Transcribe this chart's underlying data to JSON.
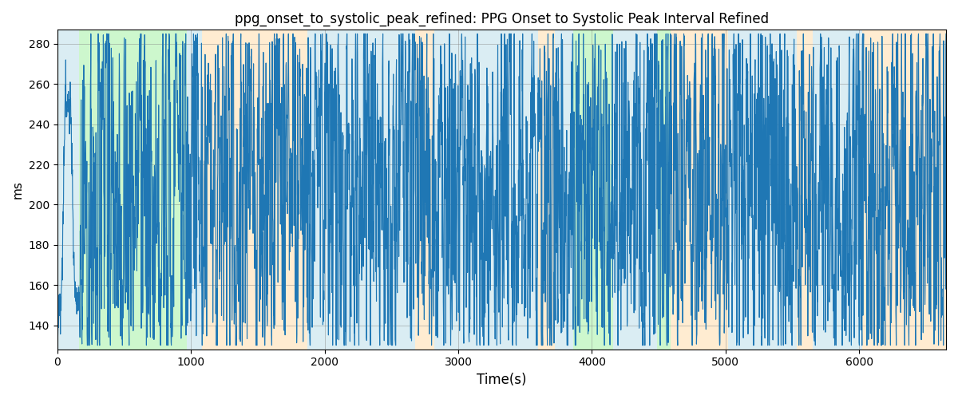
{
  "title": "ppg_onset_to_systolic_peak_refined: PPG Onset to Systolic Peak Interval Refined",
  "xlabel": "Time(s)",
  "ylabel": "ms",
  "xlim": [
    0,
    6650
  ],
  "ylim": [
    128,
    287
  ],
  "yticks": [
    140,
    160,
    180,
    200,
    220,
    240,
    260,
    280
  ],
  "xticks": [
    0,
    1000,
    2000,
    3000,
    4000,
    5000,
    6000
  ],
  "seed": 42,
  "n_points": 4000,
  "background_regions": [
    {
      "xmin": 0,
      "xmax": 165,
      "color": "#add8e6",
      "alpha": 0.45
    },
    {
      "xmin": 165,
      "xmax": 970,
      "color": "#90ee90",
      "alpha": 0.45
    },
    {
      "xmin": 970,
      "xmax": 1080,
      "color": "#add8e6",
      "alpha": 0.45
    },
    {
      "xmin": 1080,
      "xmax": 1870,
      "color": "#ffd59a",
      "alpha": 0.45
    },
    {
      "xmin": 1870,
      "xmax": 2680,
      "color": "#add8e6",
      "alpha": 0.45
    },
    {
      "xmin": 2680,
      "xmax": 2820,
      "color": "#ffd59a",
      "alpha": 0.45
    },
    {
      "xmin": 2820,
      "xmax": 3600,
      "color": "#add8e6",
      "alpha": 0.45
    },
    {
      "xmin": 3600,
      "xmax": 3720,
      "color": "#ffd59a",
      "alpha": 0.45
    },
    {
      "xmin": 3720,
      "xmax": 3860,
      "color": "#add8e6",
      "alpha": 0.45
    },
    {
      "xmin": 3860,
      "xmax": 4160,
      "color": "#90ee90",
      "alpha": 0.45
    },
    {
      "xmin": 4160,
      "xmax": 4490,
      "color": "#add8e6",
      "alpha": 0.45
    },
    {
      "xmin": 4490,
      "xmax": 4590,
      "color": "#90ee90",
      "alpha": 0.45
    },
    {
      "xmin": 4590,
      "xmax": 5020,
      "color": "#ffd59a",
      "alpha": 0.45
    },
    {
      "xmin": 5020,
      "xmax": 5530,
      "color": "#add8e6",
      "alpha": 0.45
    },
    {
      "xmin": 5530,
      "xmax": 5650,
      "color": "#ffd59a",
      "alpha": 0.45
    },
    {
      "xmin": 5650,
      "xmax": 6020,
      "color": "#add8e6",
      "alpha": 0.45
    },
    {
      "xmin": 6020,
      "xmax": 6650,
      "color": "#ffd59a",
      "alpha": 0.45
    }
  ],
  "line_color": "#1f77b4",
  "line_width": 0.8
}
